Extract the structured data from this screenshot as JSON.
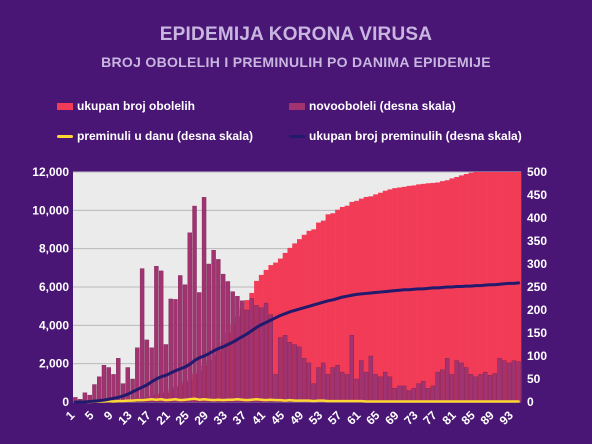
{
  "title": "EPIDEMIJA KORONA VIRUSA",
  "subtitle": "BROJ OBOLELIH I PREMINULIH PO DANIMA EPIDEMIJE",
  "legend": [
    {
      "label": "ukupan broj obolelih",
      "color": "#f23c57",
      "kind": "box"
    },
    {
      "label": "novooboleli (desna skala)",
      "color": "#a03370",
      "kind": "box"
    },
    {
      "label": "preminuli u danu (desna skala)",
      "color": "#fdd835",
      "kind": "line"
    },
    {
      "label": "ukupan broj preminulih (desna skala)",
      "color": "#221a6c",
      "kind": "line"
    }
  ],
  "chart_data": {
    "type": "bar",
    "xlabel": "",
    "ylabel": "",
    "x": [
      1,
      2,
      3,
      4,
      5,
      6,
      7,
      8,
      9,
      10,
      11,
      12,
      13,
      14,
      15,
      16,
      17,
      18,
      19,
      20,
      21,
      22,
      23,
      24,
      25,
      26,
      27,
      28,
      29,
      30,
      31,
      32,
      33,
      34,
      35,
      36,
      37,
      38,
      39,
      40,
      41,
      42,
      43,
      44,
      45,
      46,
      47,
      48,
      49,
      50,
      51,
      52,
      53,
      54,
      55,
      56,
      57,
      58,
      59,
      60,
      61,
      62,
      63,
      64,
      65,
      66,
      67,
      68,
      69,
      70,
      71,
      72,
      73,
      74,
      75,
      76,
      77,
      78,
      79,
      80,
      81,
      82,
      83,
      84,
      85,
      86,
      87,
      88,
      89,
      90,
      91,
      92,
      93,
      94
    ],
    "x_tick_labels": [
      "1",
      "5",
      "9",
      "13",
      "17",
      "21",
      "25",
      "29",
      "33",
      "37",
      "41",
      "45",
      "49",
      "53",
      "57",
      "61",
      "65",
      "69",
      "73",
      "77",
      "81",
      "85",
      "89",
      "93"
    ],
    "y_left_lim": [
      0,
      12000
    ],
    "y_left_ticks": [
      "0",
      "2,000",
      "4,000",
      "6,000",
      "8,000",
      "10,000",
      "12,000"
    ],
    "y_right_lim": [
      0,
      500
    ],
    "y_right_ticks": [
      "0",
      "50",
      "100",
      "150",
      "200",
      "250",
      "300",
      "350",
      "400",
      "450",
      "500"
    ],
    "grid": true,
    "series": [
      {
        "name": "ukupan broj obolelih",
        "axis": "left",
        "type": "bar",
        "values": [
          1,
          2,
          5,
          12,
          19,
          24,
          35,
          46,
          55,
          65,
          83,
          103,
          135,
          171,
          222,
          249,
          303,
          384,
          457,
          485,
          659,
          785,
          900,
          1060,
          1171,
          1476,
          1624,
          1908,
          2200,
          2447,
          2666,
          3105,
          3630,
          4054,
          4465,
          4873,
          5318,
          5690,
          6318,
          6630,
          6890,
          7144,
          7276,
          7483,
          7779,
          8042,
          8275,
          8497,
          8724,
          8930,
          9009,
          9362,
          9464,
          9791,
          9848,
          10032,
          10176,
          10243,
          10438,
          10496,
          10610,
          10699,
          10733,
          10833,
          10919,
          11023,
          11092,
          11159,
          11193,
          11227,
          11275,
          11300,
          11354,
          11381,
          11412,
          11430,
          11454,
          11523,
          11571,
          11667,
          11741,
          11823,
          11896,
          11965,
          12031,
          12102,
          12175,
          12251,
          12310,
          12367,
          12426,
          12522,
          12616,
          12710
        ]
      },
      {
        "name": "novooboleli (desna skala)",
        "axis": "right",
        "type": "bar",
        "values": [
          10,
          6,
          20,
          15,
          38,
          55,
          80,
          75,
          60,
          95,
          40,
          75,
          50,
          118,
          290,
          135,
          118,
          295,
          285,
          125,
          224,
          223,
          275,
          255,
          368,
          426,
          238,
          445,
          300,
          330,
          310,
          278,
          262,
          240,
          230,
          220,
          200,
          225,
          210,
          205,
          215,
          190,
          60,
          140,
          145,
          130,
          125,
          120,
          95,
          85,
          40,
          75,
          85,
          60,
          75,
          80,
          65,
          60,
          145,
          50,
          90,
          65,
          100,
          60,
          55,
          65,
          55,
          30,
          35,
          35,
          25,
          30,
          40,
          45,
          30,
          35,
          65,
          70,
          95,
          60,
          90,
          85,
          75,
          60,
          55,
          60,
          65,
          58,
          62,
          95,
          90,
          85,
          90,
          88
        ]
      },
      {
        "name": "preminuli u danu (desna skala)",
        "axis": "right",
        "type": "line",
        "values": [
          0,
          0,
          0,
          0,
          1,
          1,
          1,
          2,
          1,
          2,
          2,
          3,
          3,
          4,
          4,
          5,
          6,
          5,
          6,
          4,
          5,
          6,
          4,
          5,
          6,
          7,
          5,
          6,
          5,
          4,
          5,
          4,
          5,
          5,
          6,
          5,
          4,
          5,
          6,
          5,
          4,
          5,
          4,
          4,
          3,
          4,
          3,
          3,
          3,
          3,
          2,
          3,
          3,
          2,
          2,
          2,
          2,
          2,
          2,
          2,
          2,
          1,
          1,
          1,
          1,
          1,
          1,
          1,
          1,
          1,
          1,
          1,
          1,
          1,
          1,
          1,
          1,
          1,
          1,
          1,
          1,
          1,
          1,
          1,
          1,
          1,
          1,
          1,
          1,
          1,
          1,
          1,
          1,
          1
        ]
      },
      {
        "name": "ukupan broj preminulih (desna skala)",
        "axis": "right",
        "type": "line",
        "values": [
          0,
          0,
          0,
          1,
          2,
          3,
          4,
          6,
          8,
          10,
          13,
          17,
          22,
          27,
          32,
          37,
          44,
          50,
          55,
          58,
          63,
          68,
          72,
          76,
          82,
          90,
          96,
          100,
          105,
          111,
          116,
          120,
          125,
          130,
          136,
          142,
          148,
          155,
          162,
          168,
          173,
          178,
          183,
          188,
          192,
          196,
          199,
          202,
          205,
          208,
          211,
          214,
          217,
          220,
          222,
          225,
          228,
          230,
          232,
          234,
          235,
          236,
          237,
          238,
          239,
          240,
          241,
          242,
          243,
          244,
          244,
          245,
          246,
          246,
          247,
          248,
          248,
          249,
          250,
          250,
          251,
          251,
          252,
          252,
          253,
          253,
          254,
          255,
          255,
          256,
          257,
          258,
          258,
          259
        ]
      }
    ]
  }
}
